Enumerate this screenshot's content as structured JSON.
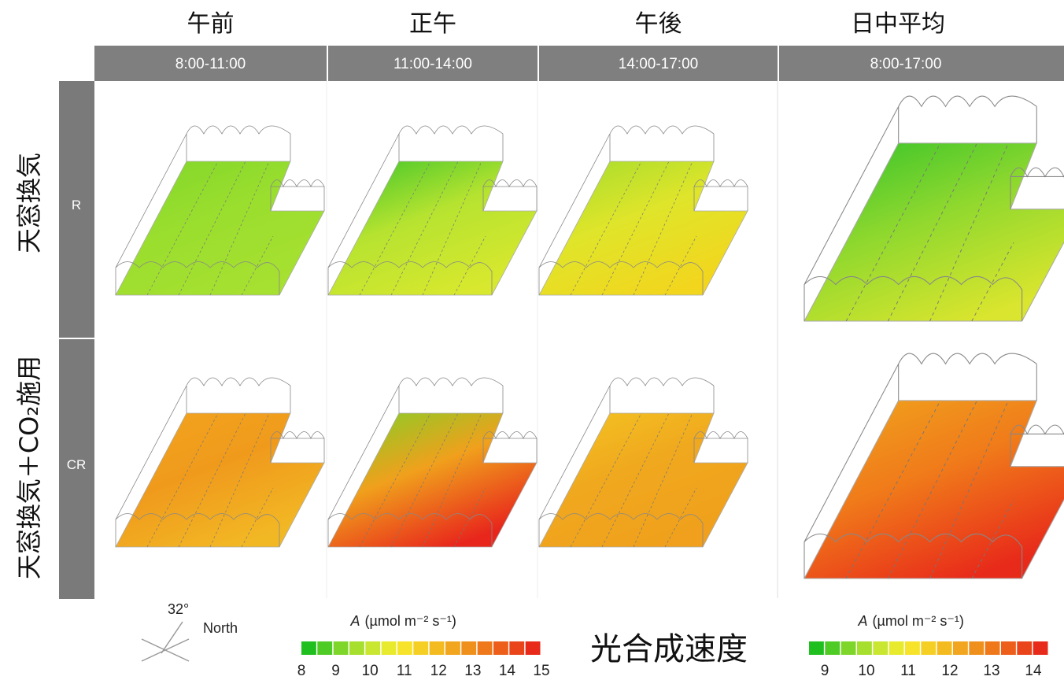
{
  "columns": [
    {
      "title": "午前",
      "time": "8:00-11:00"
    },
    {
      "title": "正午",
      "time": "11:00-14:00"
    },
    {
      "title": "午後",
      "time": "14:00-17:00"
    },
    {
      "title": "日中平均",
      "time": "8:00-17:00"
    }
  ],
  "rows": [
    {
      "label": "天窓換気",
      "code": "R"
    },
    {
      "label": "天窓換気＋CO₂施用",
      "code": "CR"
    }
  ],
  "compass": {
    "angle": "32°",
    "label": "North"
  },
  "legends": [
    {
      "variable": "A",
      "unit": "(µmol m⁻² s⁻¹)",
      "ticks": [
        8,
        9,
        10,
        11,
        12,
        13,
        14,
        15
      ]
    },
    {
      "variable": "A",
      "unit": "(µmol m⁻² s⁻¹)",
      "ticks": [
        9,
        10,
        11,
        12,
        13,
        14
      ]
    }
  ],
  "center_label": "光合成速度"
}
